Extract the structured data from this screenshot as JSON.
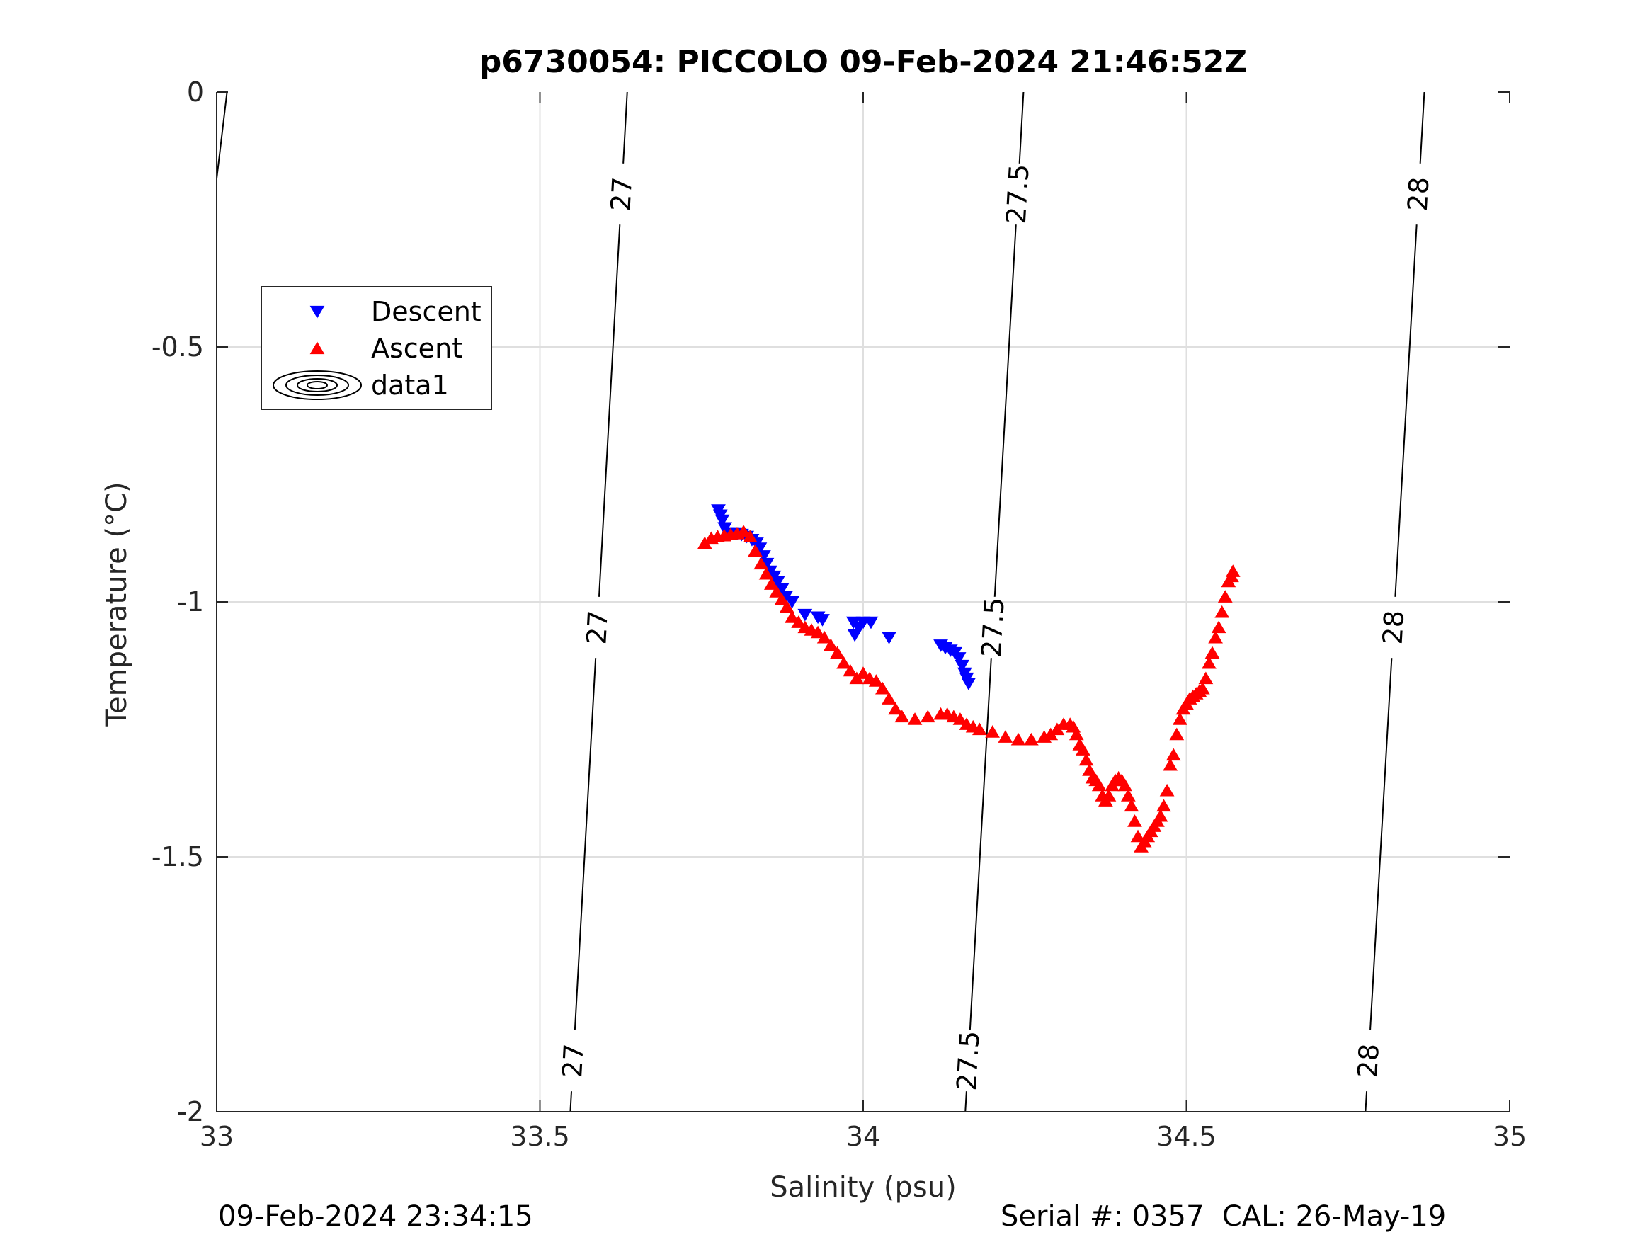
{
  "chart_data": {
    "type": "scatter",
    "title": "p6730054: PICCOLO 09-Feb-2024 21:46:52Z",
    "xlabel": "Salinity (psu)",
    "ylabel": "Temperature (°C)",
    "xlim": [
      33,
      35
    ],
    "ylim": [
      -2,
      0
    ],
    "xticks": [
      33,
      33.5,
      34,
      34.5,
      35
    ],
    "xtick_labels": [
      "33",
      "33.5",
      "34",
      "34.5",
      "35"
    ],
    "yticks": [
      0,
      -0.5,
      -1,
      -1.5,
      -2
    ],
    "ytick_labels": [
      "0",
      "-0.5",
      "-1",
      "-1.5",
      "-2"
    ],
    "grid": true,
    "legend_position": "upper-left",
    "legend": [
      {
        "label": "Descent",
        "marker": "triangle-down",
        "color": "#0000ff"
      },
      {
        "label": "Ascent",
        "marker": "triangle-up",
        "color": "#ff0000"
      },
      {
        "label": "data1",
        "marker": "contour-ellipses",
        "color": "#000000"
      }
    ],
    "series": [
      {
        "name": "Descent",
        "marker": "triangle-down",
        "color": "#0000ff",
        "x": [
          33.776,
          33.779,
          33.782,
          33.786,
          33.79,
          33.797,
          33.806,
          33.812,
          33.82,
          33.828,
          33.835,
          33.84,
          33.846,
          33.851,
          33.856,
          33.862,
          33.868,
          33.874,
          33.88,
          33.89,
          33.91,
          33.93,
          33.937,
          33.985,
          33.987,
          33.993,
          34.0,
          34.012,
          34.04,
          34.12,
          34.127,
          34.135,
          34.142,
          34.148,
          34.153,
          34.157,
          34.16,
          34.163
        ],
        "y": [
          -0.82,
          -0.83,
          -0.84,
          -0.855,
          -0.865,
          -0.865,
          -0.865,
          -0.868,
          -0.872,
          -0.878,
          -0.885,
          -0.895,
          -0.91,
          -0.925,
          -0.94,
          -0.95,
          -0.96,
          -0.975,
          -0.99,
          -1.0,
          -1.025,
          -1.03,
          -1.035,
          -1.04,
          -1.065,
          -1.05,
          -1.04,
          -1.04,
          -1.07,
          -1.085,
          -1.09,
          -1.095,
          -1.1,
          -1.11,
          -1.125,
          -1.14,
          -1.15,
          -1.16
        ]
      },
      {
        "name": "Ascent",
        "marker": "triangle-up",
        "color": "#ff0000",
        "x": [
          33.755,
          33.765,
          33.775,
          33.785,
          33.795,
          33.805,
          33.815,
          33.825,
          33.833,
          33.842,
          33.85,
          33.858,
          33.866,
          33.874,
          33.882,
          33.89,
          33.9,
          33.91,
          33.92,
          33.93,
          33.94,
          33.95,
          33.96,
          33.97,
          33.98,
          33.99,
          34.0,
          34.01,
          34.02,
          34.03,
          34.04,
          34.05,
          34.06,
          34.08,
          34.1,
          34.12,
          34.13,
          34.14,
          34.15,
          34.16,
          34.17,
          34.18,
          34.2,
          34.22,
          34.24,
          34.26,
          34.28,
          34.29,
          34.3,
          34.31,
          34.32,
          34.325,
          34.33,
          34.335,
          34.34,
          34.345,
          34.35,
          34.355,
          34.36,
          34.365,
          34.37,
          34.375,
          34.38,
          34.385,
          34.39,
          34.395,
          34.4,
          34.405,
          34.41,
          34.415,
          34.42,
          34.425,
          34.43,
          34.435,
          34.44,
          34.445,
          34.45,
          34.455,
          34.46,
          34.465,
          34.47,
          34.475,
          34.48,
          34.485,
          34.49,
          34.495,
          34.5,
          34.505,
          34.51,
          34.515,
          34.52,
          34.525,
          34.53,
          34.535,
          34.54,
          34.545,
          34.55,
          34.555,
          34.56,
          34.565,
          34.57,
          34.572
        ],
        "y": [
          -0.885,
          -0.875,
          -0.872,
          -0.87,
          -0.868,
          -0.866,
          -0.862,
          -0.872,
          -0.9,
          -0.925,
          -0.945,
          -0.965,
          -0.98,
          -0.995,
          -1.01,
          -1.03,
          -1.04,
          -1.05,
          -1.055,
          -1.06,
          -1.07,
          -1.085,
          -1.1,
          -1.12,
          -1.135,
          -1.15,
          -1.14,
          -1.15,
          -1.155,
          -1.17,
          -1.19,
          -1.21,
          -1.225,
          -1.23,
          -1.225,
          -1.22,
          -1.22,
          -1.225,
          -1.23,
          -1.24,
          -1.245,
          -1.25,
          -1.255,
          -1.265,
          -1.27,
          -1.27,
          -1.265,
          -1.26,
          -1.25,
          -1.24,
          -1.24,
          -1.245,
          -1.26,
          -1.28,
          -1.29,
          -1.31,
          -1.33,
          -1.345,
          -1.35,
          -1.36,
          -1.38,
          -1.39,
          -1.38,
          -1.36,
          -1.35,
          -1.345,
          -1.35,
          -1.36,
          -1.38,
          -1.4,
          -1.43,
          -1.46,
          -1.48,
          -1.47,
          -1.46,
          -1.45,
          -1.44,
          -1.43,
          -1.42,
          -1.4,
          -1.37,
          -1.32,
          -1.3,
          -1.26,
          -1.23,
          -1.21,
          -1.2,
          -1.19,
          -1.185,
          -1.18,
          -1.175,
          -1.17,
          -1.15,
          -1.12,
          -1.1,
          -1.07,
          -1.05,
          -1.02,
          -0.99,
          -0.96,
          -0.95,
          -0.94
        ]
      }
    ],
    "contours": [
      {
        "level": 27,
        "label": "27",
        "bottom_x": 33.547,
        "top_x": 33.635,
        "label_y": [
          -0.2,
          -1.05,
          -1.9
        ]
      },
      {
        "level": 27.5,
        "label": "27.5",
        "bottom_x": 34.158,
        "top_x": 34.248,
        "label_y": [
          -0.2,
          -1.05,
          -1.9
        ]
      },
      {
        "level": 28,
        "label": "28",
        "bottom_x": 34.777,
        "top_x": 34.868,
        "label_y": [
          -0.2,
          -1.05,
          -1.9
        ]
      }
    ]
  },
  "footer": {
    "timestamp": "09-Feb-2024 23:34:15",
    "serial": "Serial #: 0357  CAL: 26-May-19"
  }
}
